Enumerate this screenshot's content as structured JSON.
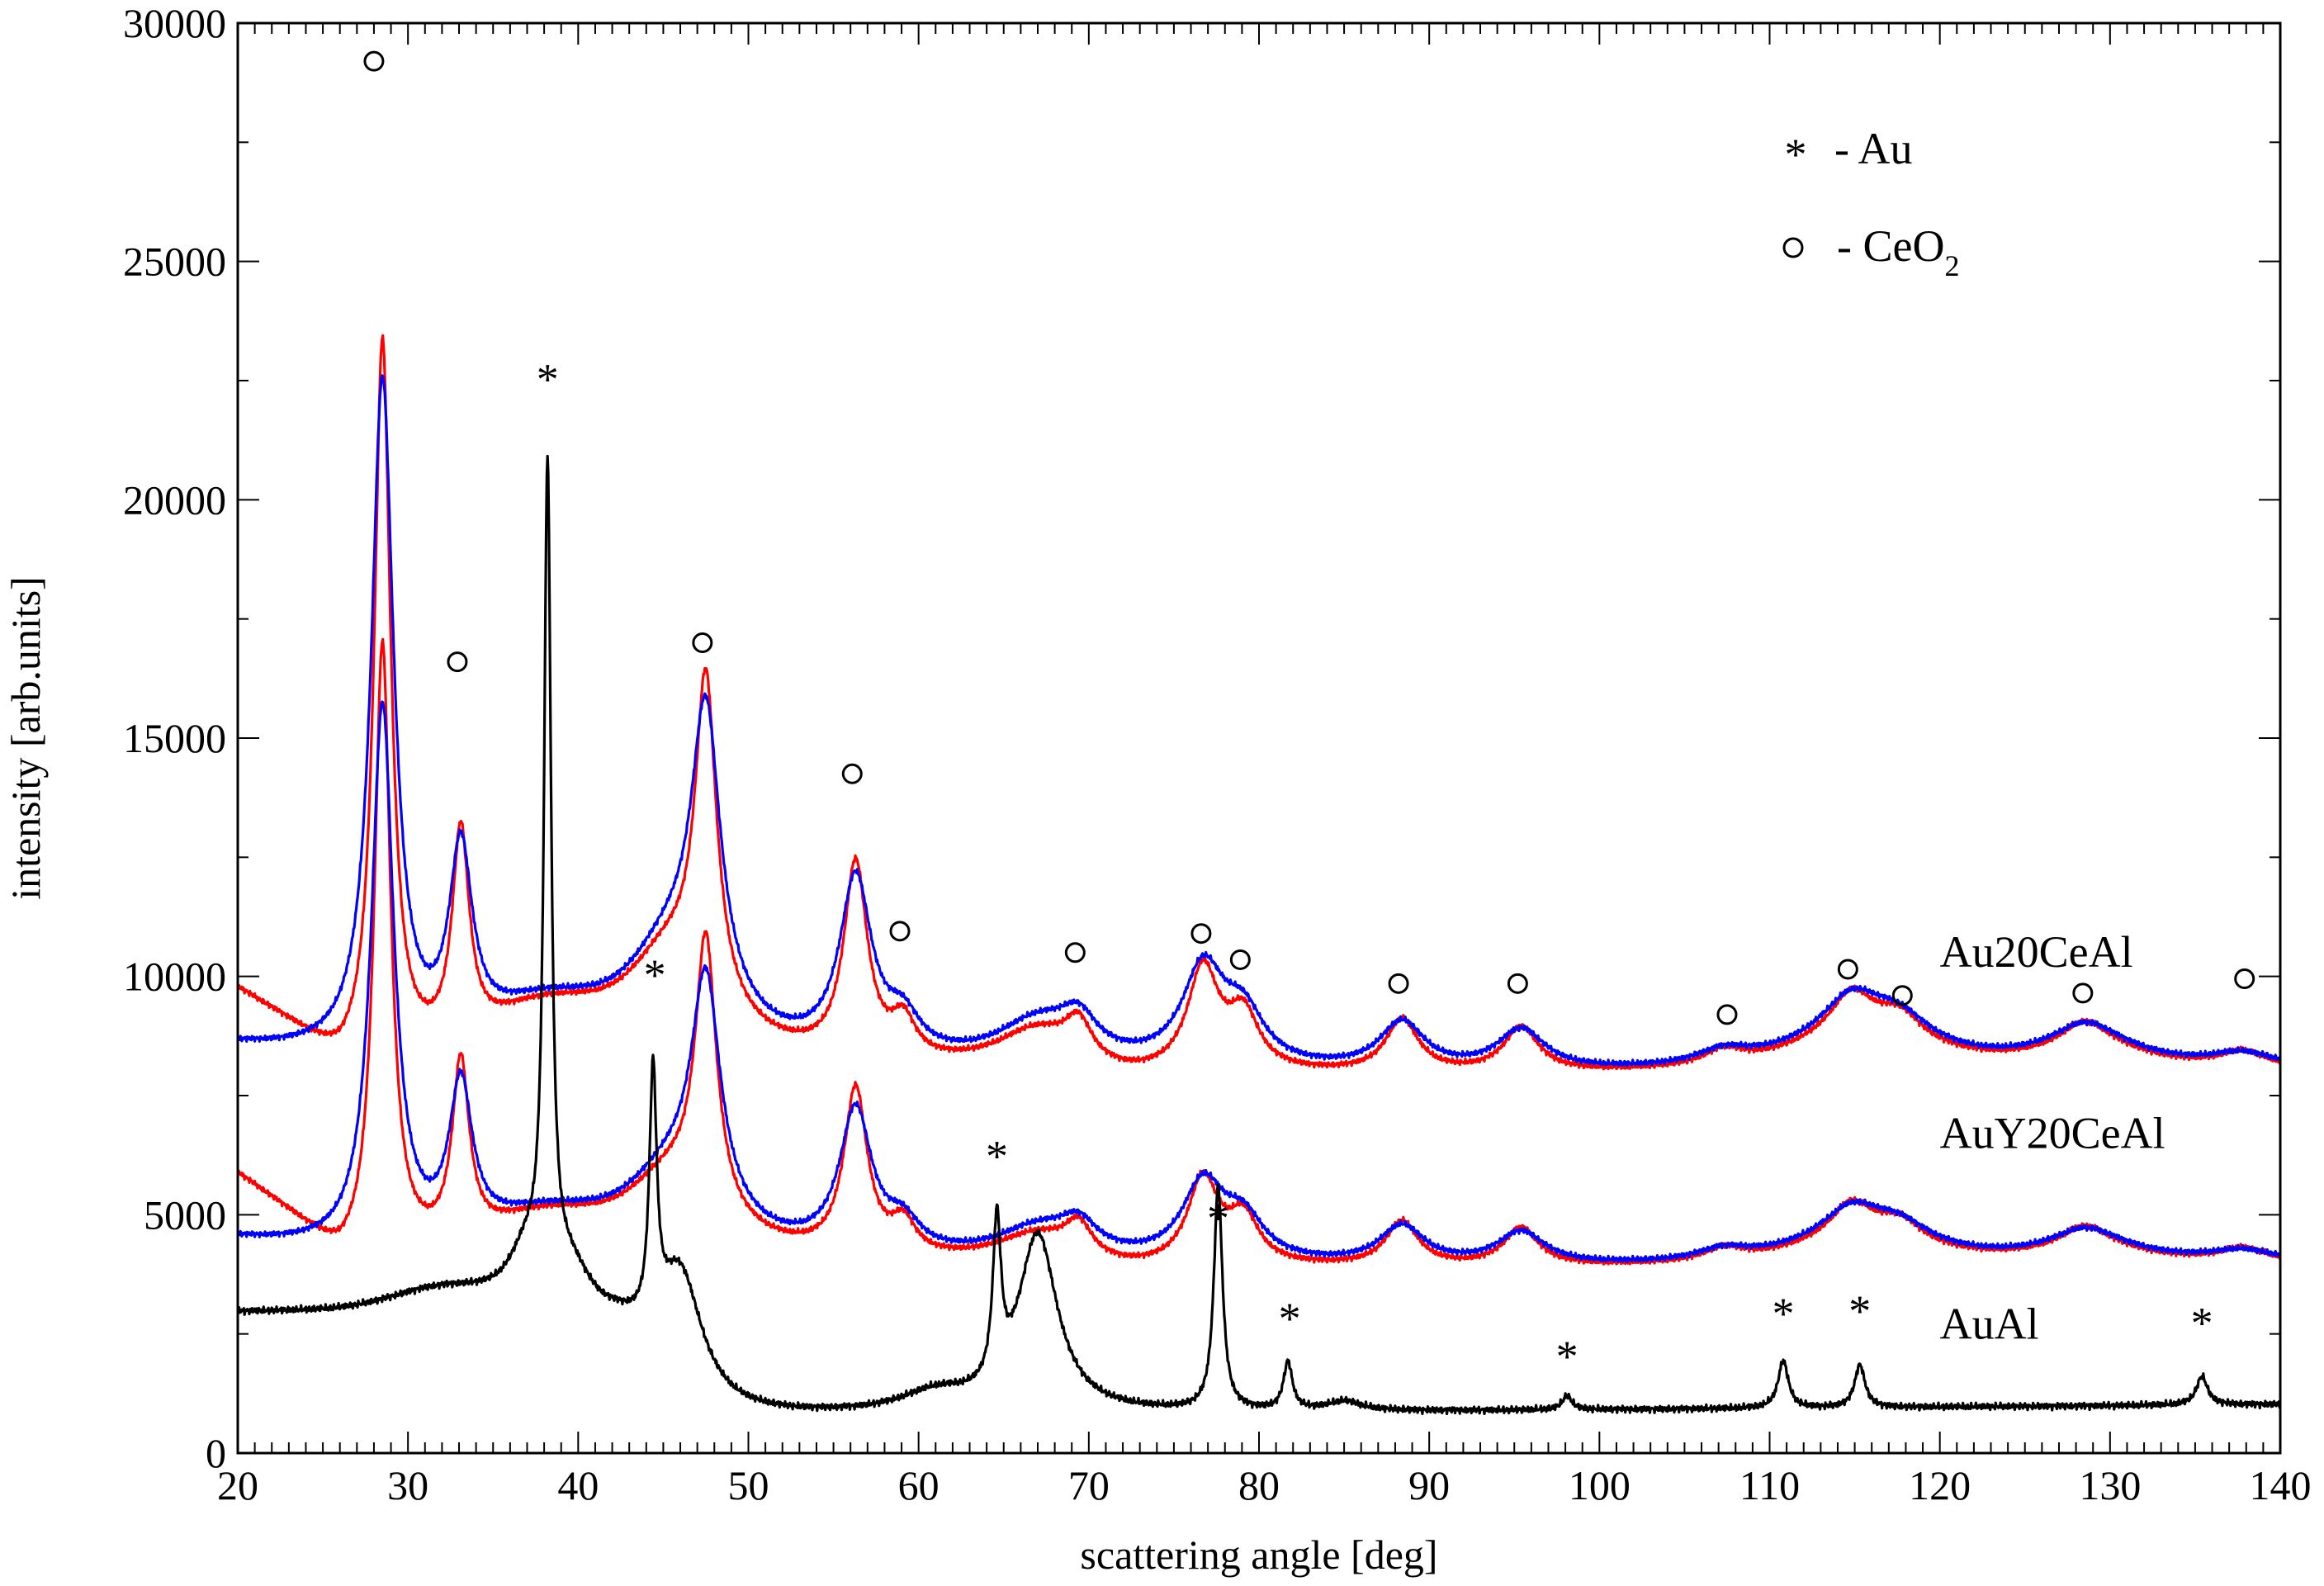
{
  "chart_data": {
    "type": "line",
    "xlabel": "scattering angle  [deg]",
    "ylabel": "intensity  [arb.units]",
    "xlim": [
      20,
      140
    ],
    "ylim": [
      0,
      30000
    ],
    "x_ticks": [
      "20",
      "30",
      "40",
      "50",
      "60",
      "70",
      "80",
      "90",
      "100",
      "110",
      "120",
      "130",
      "140"
    ],
    "y_ticks": [
      "0",
      "5000",
      "10000",
      "15000",
      "20000",
      "25000",
      "30000"
    ],
    "grid": false,
    "legend": {
      "position": "top-right",
      "entries": [
        {
          "marker": "*",
          "label": "-  Au"
        },
        {
          "marker": "o",
          "label": "- CeO",
          "sub": "2"
        }
      ]
    },
    "series_labels": [
      {
        "text": "Au20CeAl",
        "x": 120,
        "y": 10200
      },
      {
        "text": "AuY20CeAl",
        "x": 120,
        "y": 6400
      },
      {
        "text": "AuAl",
        "x": 120,
        "y": 2400
      }
    ],
    "colors": {
      "red": "#ff0000",
      "blue": "#0000ff",
      "black": "#000000"
    },
    "peaks": {
      "ce": [
        [
          28.5,
          1.0
        ],
        [
          33.1,
          0.28
        ],
        [
          47.5,
          0.42
        ],
        [
          56.3,
          0.26
        ],
        [
          59.1,
          0.05
        ],
        [
          69.4,
          0.05
        ],
        [
          76.7,
          0.12
        ],
        [
          79.1,
          0.07
        ],
        [
          88.4,
          0.07
        ],
        [
          95.4,
          0.06
        ],
        [
          107.3,
          0.02
        ],
        [
          114.8,
          0.05
        ],
        [
          117.7,
          0.03
        ],
        [
          128.5,
          0.03
        ],
        [
          137.8,
          0.02
        ]
      ],
      "au": [
        [
          38.2,
          17000
        ],
        [
          44.4,
          5200
        ],
        [
          64.6,
          3300
        ],
        [
          77.6,
          4700
        ],
        [
          81.7,
          1000
        ],
        [
          98.1,
          300
        ],
        [
          110.8,
          1000
        ],
        [
          115.3,
          900
        ],
        [
          135.4,
          600
        ]
      ]
    },
    "series": [
      {
        "group": "Au20CeAl",
        "color": "red",
        "scale": 1.0,
        "sharp": 1.12
      },
      {
        "group": "Au20CeAl",
        "color": "blue",
        "scale": 0.93,
        "sharp": 0.9
      },
      {
        "group": "AuY20CeAl",
        "color": "red",
        "scale": 0.85,
        "sharp": 1.12
      },
      {
        "group": "AuY20CeAl",
        "color": "blue",
        "scale": 0.75,
        "sharp": 0.9
      },
      {
        "group": "AuAl",
        "color": "black"
      }
    ],
    "ce_markers": [
      {
        "x": 28.0,
        "y": 29200
      },
      {
        "x": 32.9,
        "y": 16600
      },
      {
        "x": 47.3,
        "y": 17000
      },
      {
        "x": 56.1,
        "y": 14250
      },
      {
        "x": 58.9,
        "y": 10950
      },
      {
        "x": 69.2,
        "y": 10500
      },
      {
        "x": 76.6,
        "y": 10900
      },
      {
        "x": 78.9,
        "y": 10350
      },
      {
        "x": 88.2,
        "y": 9850
      },
      {
        "x": 95.2,
        "y": 9850
      },
      {
        "x": 107.5,
        "y": 9200
      },
      {
        "x": 114.6,
        "y": 10150
      },
      {
        "x": 117.8,
        "y": 9600
      },
      {
        "x": 128.4,
        "y": 9650
      },
      {
        "x": 137.9,
        "y": 9950
      }
    ],
    "au_markers": [
      {
        "x": 38.2,
        "y": 22700
      },
      {
        "x": 44.5,
        "y": 10200
      },
      {
        "x": 64.6,
        "y": 6400
      },
      {
        "x": 77.6,
        "y": 5100
      },
      {
        "x": 81.8,
        "y": 3000
      },
      {
        "x": 98.1,
        "y": 2200
      },
      {
        "x": 110.8,
        "y": 3100
      },
      {
        "x": 115.3,
        "y": 3150
      },
      {
        "x": 135.4,
        "y": 2900
      }
    ]
  }
}
